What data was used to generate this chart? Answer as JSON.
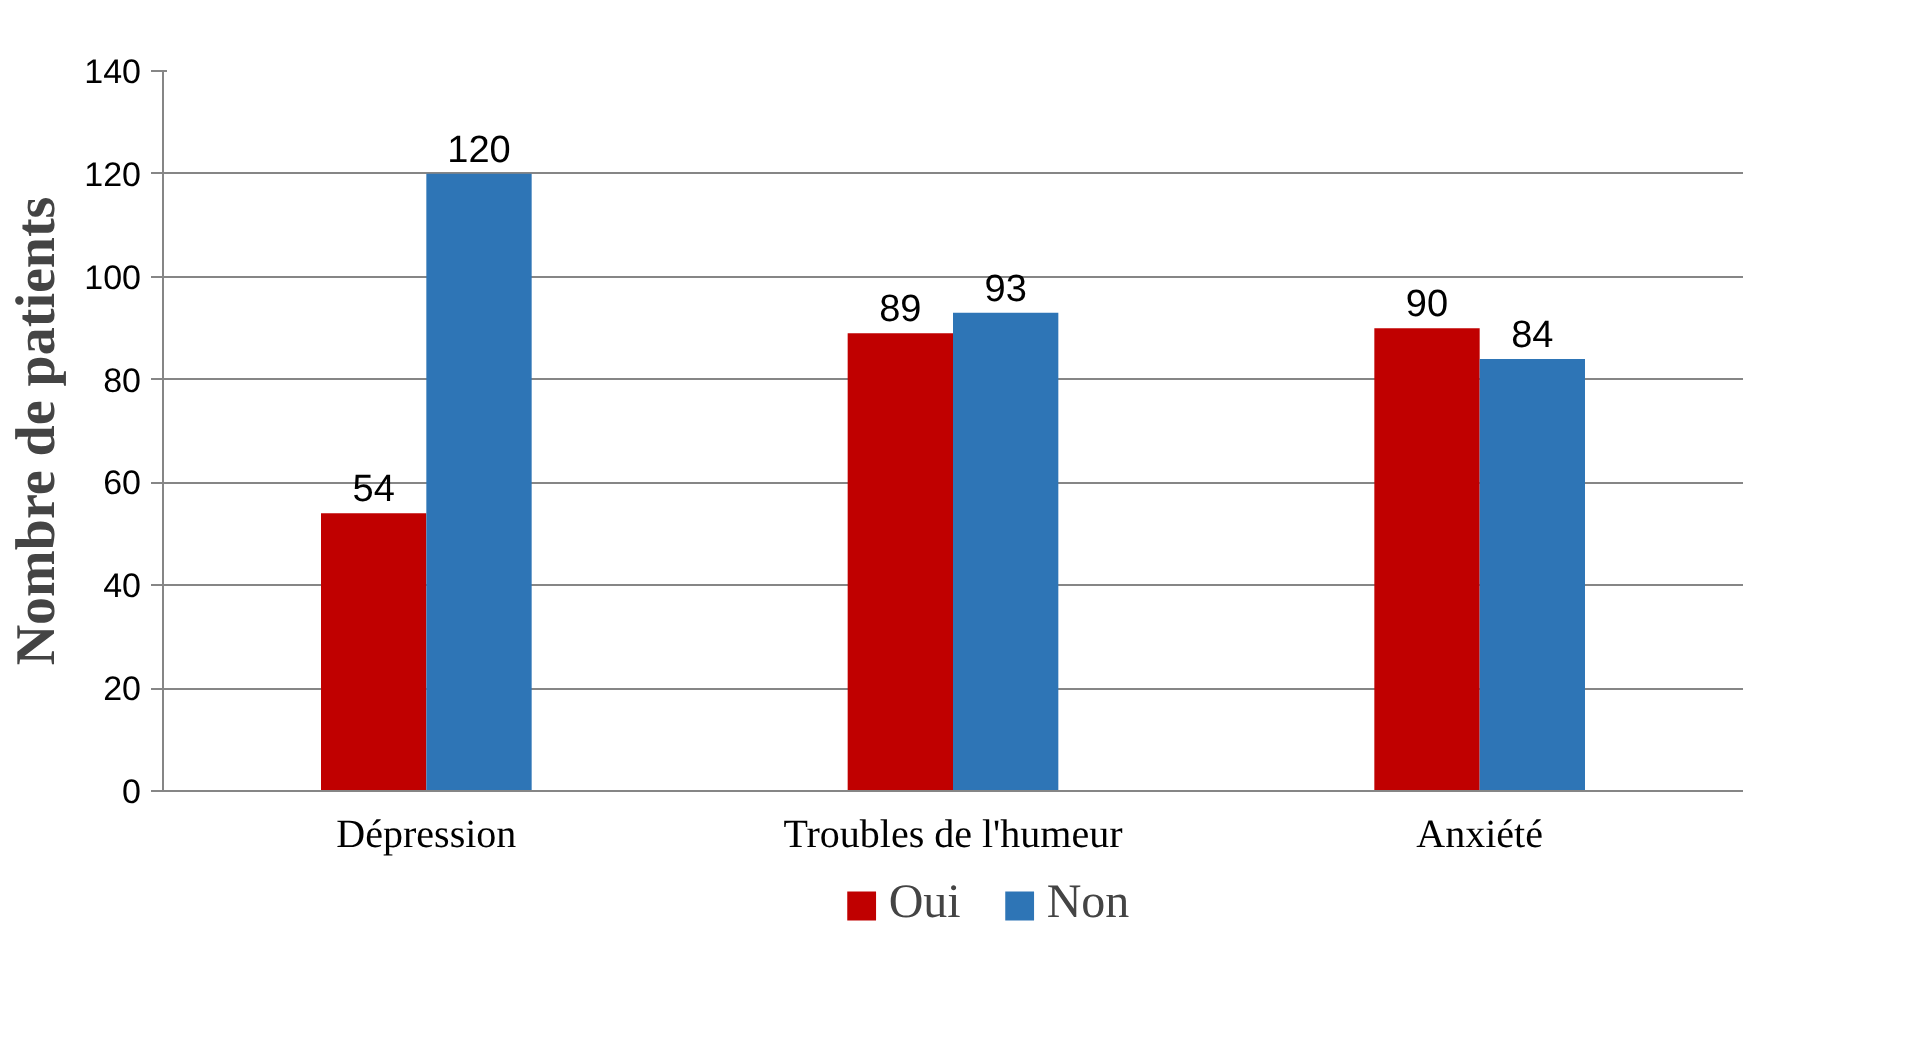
{
  "chart_data": {
    "type": "bar",
    "ylabel": "Nombre de patients",
    "categories": [
      "Dépression",
      "Troubles de l'humeur",
      "Anxiété"
    ],
    "series": [
      {
        "name": "Oui",
        "color": "#c00000",
        "values": [
          54,
          89,
          90
        ]
      },
      {
        "name": "Non",
        "color": "#2e75b6",
        "values": [
          120,
          93,
          84
        ]
      }
    ],
    "ylim": [
      0,
      140
    ],
    "yticks": [
      0,
      20,
      40,
      60,
      80,
      100,
      120,
      140
    ],
    "grid": "y",
    "legend": "bottom",
    "data_labels": true
  }
}
